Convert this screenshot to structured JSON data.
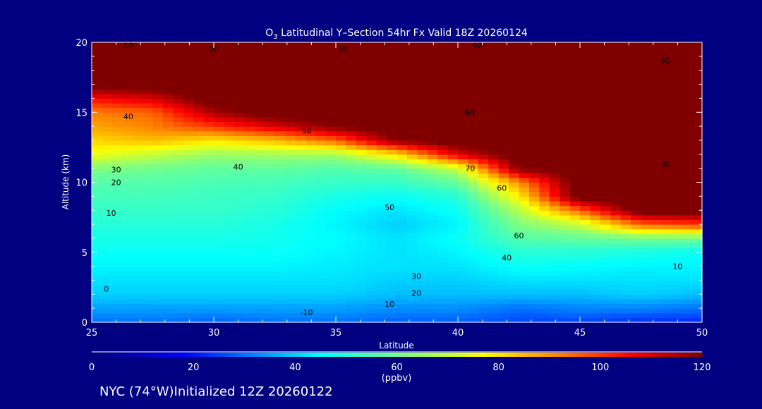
{
  "chart_data": {
    "type": "heatmap",
    "title_prefix": "O",
    "title_sub": "3",
    "title_rest": " Latitudinal Y–Section 54hr  Fx Valid 18Z 20260124",
    "xlabel": "Latitude",
    "ylabel": "Altitude (km)",
    "xlim": [
      25,
      50
    ],
    "ylim": [
      0,
      20
    ],
    "xticks": [
      "25",
      "30",
      "35",
      "40",
      "45",
      "50"
    ],
    "yticks": [
      "0",
      "5",
      "10",
      "15",
      "20"
    ],
    "lat": [
      25,
      27.5,
      30,
      32.5,
      35,
      37.5,
      40,
      42.5,
      45,
      47.5,
      50
    ],
    "alt": [
      0,
      1,
      2,
      3,
      4,
      5,
      6,
      7,
      8,
      9,
      10,
      11,
      12,
      13,
      14,
      15,
      16,
      17,
      18,
      19,
      20
    ],
    "values_by_lat": [
      [
        30,
        35,
        40,
        42,
        44,
        46,
        48,
        50,
        52,
        54,
        56,
        62,
        75,
        82,
        88,
        92,
        105,
        125,
        125,
        125,
        125
      ],
      [
        30,
        35,
        40,
        42,
        44,
        46,
        48,
        50,
        52,
        54,
        56,
        60,
        70,
        85,
        92,
        95,
        110,
        125,
        125,
        125,
        125
      ],
      [
        28,
        35,
        40,
        42,
        44,
        46,
        48,
        50,
        52,
        53,
        55,
        58,
        65,
        80,
        100,
        115,
        125,
        125,
        125,
        125,
        125
      ],
      [
        30,
        35,
        40,
        42,
        44,
        46,
        47,
        48,
        50,
        52,
        54,
        58,
        66,
        85,
        110,
        125,
        125,
        125,
        125,
        125,
        125
      ],
      [
        30,
        35,
        40,
        42,
        43,
        44,
        45,
        44,
        45,
        48,
        52,
        56,
        66,
        95,
        120,
        125,
        125,
        125,
        125,
        125,
        125
      ],
      [
        28,
        33,
        38,
        40,
        42,
        42,
        42,
        40,
        42,
        46,
        52,
        58,
        80,
        120,
        125,
        125,
        125,
        125,
        125,
        125,
        125
      ],
      [
        28,
        33,
        38,
        40,
        42,
        44,
        46,
        44,
        46,
        50,
        58,
        70,
        110,
        125,
        125,
        125,
        125,
        125,
        125,
        125,
        125
      ],
      [
        25,
        30,
        38,
        42,
        46,
        50,
        56,
        62,
        68,
        78,
        90,
        120,
        125,
        125,
        125,
        125,
        125,
        125,
        125,
        125,
        125
      ],
      [
        25,
        32,
        38,
        42,
        45,
        50,
        58,
        70,
        95,
        125,
        125,
        125,
        125,
        125,
        125,
        125,
        125,
        125,
        125,
        125,
        125
      ],
      [
        22,
        32,
        40,
        42,
        44,
        48,
        60,
        95,
        125,
        125,
        125,
        125,
        125,
        125,
        125,
        125,
        125,
        125,
        125,
        125,
        125
      ],
      [
        22,
        30,
        38,
        42,
        44,
        46,
        60,
        100,
        125,
        125,
        125,
        125,
        125,
        125,
        125,
        125,
        125,
        125,
        125,
        125,
        125
      ]
    ],
    "contour_labels": [
      {
        "text": "10",
        "lat": 26.5,
        "alt": 19.8
      },
      {
        "text": "20",
        "lat": 30,
        "alt": 19.5
      },
      {
        "text": "30",
        "lat": 35.3,
        "alt": 19.5
      },
      {
        "text": "40",
        "lat": 40.8,
        "alt": 19.8
      },
      {
        "text": "50",
        "lat": 48.5,
        "alt": 18.7
      },
      {
        "text": "40",
        "lat": 26.5,
        "alt": 14.7
      },
      {
        "text": "50",
        "lat": 33.8,
        "alt": 13.7
      },
      {
        "text": "60",
        "lat": 40.5,
        "alt": 15
      },
      {
        "text": "70",
        "lat": 40.5,
        "alt": 11
      },
      {
        "text": "60",
        "lat": 41.8,
        "alt": 9.6
      },
      {
        "text": "60",
        "lat": 48.5,
        "alt": 11.3
      },
      {
        "text": "30",
        "lat": 26,
        "alt": 10.9
      },
      {
        "text": "40",
        "lat": 31,
        "alt": 11.1
      },
      {
        "text": "20",
        "lat": 26,
        "alt": 10
      },
      {
        "text": "50",
        "lat": 37.2,
        "alt": 8.2
      },
      {
        "text": "10",
        "lat": 25.8,
        "alt": 7.8
      },
      {
        "text": "60",
        "lat": 42.5,
        "alt": 6.2
      },
      {
        "text": "40",
        "lat": 42,
        "alt": 4.6
      },
      {
        "text": "30",
        "lat": 38.3,
        "alt": 3.3
      },
      {
        "text": "20",
        "lat": 38.3,
        "alt": 2.1
      },
      {
        "text": "10",
        "lat": 37.2,
        "alt": 1.3
      },
      {
        "text": "0",
        "lat": 25.6,
        "alt": 2.4
      },
      {
        "text": "-10",
        "lat": 33.8,
        "alt": 0.7
      },
      {
        "text": "10",
        "lat": 49,
        "alt": 4
      }
    ],
    "colorbar": {
      "ticks": [
        "0",
        "20",
        "40",
        "60",
        "80",
        "100",
        "120"
      ],
      "range": [
        0,
        120
      ],
      "units": "(ppbv)",
      "stops": [
        [
          0,
          "#00007a"
        ],
        [
          18,
          "#0000ff"
        ],
        [
          45,
          "#00ffff"
        ],
        [
          62,
          "#80ff80"
        ],
        [
          77,
          "#ffff00"
        ],
        [
          90,
          "#ff9400"
        ],
        [
          106,
          "#ff0000"
        ],
        [
          120,
          "#800000"
        ]
      ]
    }
  },
  "footer": "NYC (74°W)Initialized 12Z 20260122",
  "colors": {
    "background": "#000080",
    "axis": "#ffffff"
  }
}
